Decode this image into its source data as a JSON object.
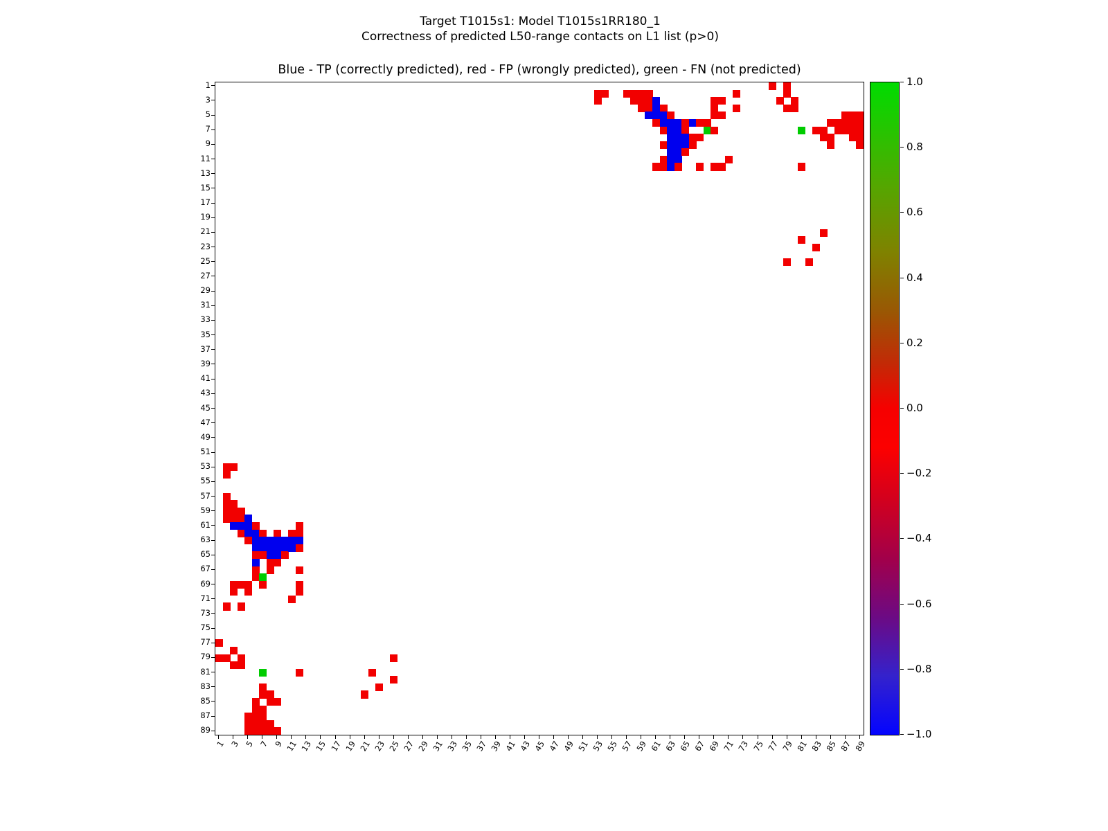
{
  "figure": {
    "suptitle_line1": "Target T1015s1: Model T1015s1RR180_1",
    "suptitle_line2": "Correctness of predicted L50-range contacts on L1 list (p>0)",
    "axes_title": "Blue - TP (correctly predicted), red - FP (wrongly predicted), green - FN (not predicted)"
  },
  "chart_data": {
    "type": "heatmap",
    "title": "Blue - TP (correctly predicted), red - FP (wrongly predicted), green - FN (not predicted)",
    "x_range": [
      1,
      89
    ],
    "y_range": [
      1,
      89
    ],
    "symmetric": true,
    "axis_ticks": [
      1,
      3,
      5,
      7,
      9,
      11,
      13,
      15,
      17,
      19,
      21,
      23,
      25,
      27,
      29,
      31,
      33,
      35,
      37,
      39,
      41,
      43,
      45,
      47,
      49,
      51,
      53,
      55,
      57,
      59,
      61,
      63,
      65,
      67,
      69,
      71,
      73,
      75,
      77,
      79,
      81,
      83,
      85,
      87,
      89
    ],
    "legend": {
      "TP": "Blue - TP (correctly predicted)",
      "FP": "red - FP (wrongly predicted)",
      "FN": "green - FN (not predicted)"
    },
    "colors": {
      "TP": "#0000ee",
      "FP": "#f20000",
      "FN": "#00cc00",
      "background": "#ffffff"
    },
    "cells": [
      [
        1,
        77,
        "FP"
      ],
      [
        1,
        79,
        "FP"
      ],
      [
        2,
        53,
        "FP"
      ],
      [
        2,
        54,
        "FP"
      ],
      [
        2,
        57,
        "FP"
      ],
      [
        2,
        58,
        "FP"
      ],
      [
        2,
        59,
        "FP"
      ],
      [
        2,
        60,
        "FP"
      ],
      [
        2,
        72,
        "FP"
      ],
      [
        2,
        79,
        "FP"
      ],
      [
        3,
        53,
        "FP"
      ],
      [
        3,
        58,
        "FP"
      ],
      [
        3,
        59,
        "FP"
      ],
      [
        3,
        60,
        "FP"
      ],
      [
        3,
        61,
        "TP"
      ],
      [
        3,
        69,
        "FP"
      ],
      [
        3,
        70,
        "FP"
      ],
      [
        3,
        78,
        "FP"
      ],
      [
        3,
        80,
        "FP"
      ],
      [
        4,
        59,
        "FP"
      ],
      [
        4,
        60,
        "FP"
      ],
      [
        4,
        61,
        "TP"
      ],
      [
        4,
        62,
        "FP"
      ],
      [
        4,
        69,
        "FP"
      ],
      [
        4,
        72,
        "FP"
      ],
      [
        4,
        79,
        "FP"
      ],
      [
        4,
        80,
        "FP"
      ],
      [
        5,
        60,
        "TP"
      ],
      [
        5,
        61,
        "TP"
      ],
      [
        5,
        62,
        "TP"
      ],
      [
        5,
        63,
        "FP"
      ],
      [
        5,
        69,
        "FP"
      ],
      [
        5,
        70,
        "FP"
      ],
      [
        5,
        87,
        "FP"
      ],
      [
        5,
        88,
        "FP"
      ],
      [
        5,
        89,
        "FP"
      ],
      [
        6,
        61,
        "FP"
      ],
      [
        6,
        62,
        "TP"
      ],
      [
        6,
        63,
        "TP"
      ],
      [
        6,
        64,
        "TP"
      ],
      [
        6,
        65,
        "FP"
      ],
      [
        6,
        66,
        "TP"
      ],
      [
        6,
        67,
        "FP"
      ],
      [
        6,
        68,
        "FP"
      ],
      [
        6,
        85,
        "FP"
      ],
      [
        6,
        86,
        "FP"
      ],
      [
        6,
        87,
        "FP"
      ],
      [
        6,
        88,
        "FP"
      ],
      [
        6,
        89,
        "FP"
      ],
      [
        7,
        62,
        "FP"
      ],
      [
        7,
        63,
        "TP"
      ],
      [
        7,
        64,
        "TP"
      ],
      [
        7,
        65,
        "FP"
      ],
      [
        7,
        68,
        "FN"
      ],
      [
        7,
        69,
        "FP"
      ],
      [
        7,
        81,
        "FN"
      ],
      [
        7,
        83,
        "FP"
      ],
      [
        7,
        84,
        "FP"
      ],
      [
        7,
        86,
        "FP"
      ],
      [
        7,
        87,
        "FP"
      ],
      [
        7,
        88,
        "FP"
      ],
      [
        7,
        89,
        "FP"
      ],
      [
        8,
        63,
        "TP"
      ],
      [
        8,
        64,
        "TP"
      ],
      [
        8,
        65,
        "TP"
      ],
      [
        8,
        66,
        "FP"
      ],
      [
        8,
        67,
        "FP"
      ],
      [
        8,
        84,
        "FP"
      ],
      [
        8,
        85,
        "FP"
      ],
      [
        8,
        88,
        "FP"
      ],
      [
        8,
        89,
        "FP"
      ],
      [
        9,
        62,
        "FP"
      ],
      [
        9,
        63,
        "TP"
      ],
      [
        9,
        64,
        "TP"
      ],
      [
        9,
        65,
        "TP"
      ],
      [
        9,
        66,
        "FP"
      ],
      [
        9,
        85,
        "FP"
      ],
      [
        9,
        89,
        "FP"
      ],
      [
        10,
        63,
        "TP"
      ],
      [
        10,
        64,
        "TP"
      ],
      [
        10,
        65,
        "FP"
      ],
      [
        11,
        62,
        "FP"
      ],
      [
        11,
        63,
        "TP"
      ],
      [
        11,
        64,
        "TP"
      ],
      [
        11,
        71,
        "FP"
      ],
      [
        12,
        61,
        "FP"
      ],
      [
        12,
        62,
        "FP"
      ],
      [
        12,
        63,
        "TP"
      ],
      [
        12,
        64,
        "FP"
      ],
      [
        12,
        67,
        "FP"
      ],
      [
        12,
        69,
        "FP"
      ],
      [
        12,
        70,
        "FP"
      ],
      [
        12,
        81,
        "FP"
      ],
      [
        21,
        84,
        "FP"
      ],
      [
        22,
        81,
        "FP"
      ],
      [
        23,
        83,
        "FP"
      ],
      [
        25,
        79,
        "FP"
      ],
      [
        25,
        82,
        "FP"
      ]
    ],
    "colorbar": {
      "ticks": [
        {
          "value": 1.0,
          "label": "1.0"
        },
        {
          "value": 0.8,
          "label": "0.8"
        },
        {
          "value": 0.6,
          "label": "0.6"
        },
        {
          "value": 0.4,
          "label": "0.4"
        },
        {
          "value": 0.2,
          "label": "0.2"
        },
        {
          "value": 0.0,
          "label": "0.0"
        },
        {
          "value": -0.2,
          "label": "−0.2"
        },
        {
          "value": -0.4,
          "label": "−0.4"
        },
        {
          "value": -0.6,
          "label": "−0.6"
        },
        {
          "value": -0.8,
          "label": "−0.8"
        },
        {
          "value": -1.0,
          "label": "−1.0"
        }
      ],
      "gradient": [
        {
          "pos": 0.0,
          "color": "#00dc00"
        },
        {
          "pos": 0.07,
          "color": "#24c600"
        },
        {
          "pos": 0.16,
          "color": "#55a600"
        },
        {
          "pos": 0.26,
          "color": "#7f8200"
        },
        {
          "pos": 0.35,
          "color": "#995804"
        },
        {
          "pos": 0.43,
          "color": "#c22a06"
        },
        {
          "pos": 0.5,
          "color": "#f60000"
        },
        {
          "pos": 0.56,
          "color": "#fc0000"
        },
        {
          "pos": 0.64,
          "color": "#d2001e"
        },
        {
          "pos": 0.73,
          "color": "#a2004a"
        },
        {
          "pos": 0.82,
          "color": "#6c0a84"
        },
        {
          "pos": 0.91,
          "color": "#3422cc"
        },
        {
          "pos": 1.0,
          "color": "#0404ff"
        }
      ]
    }
  }
}
